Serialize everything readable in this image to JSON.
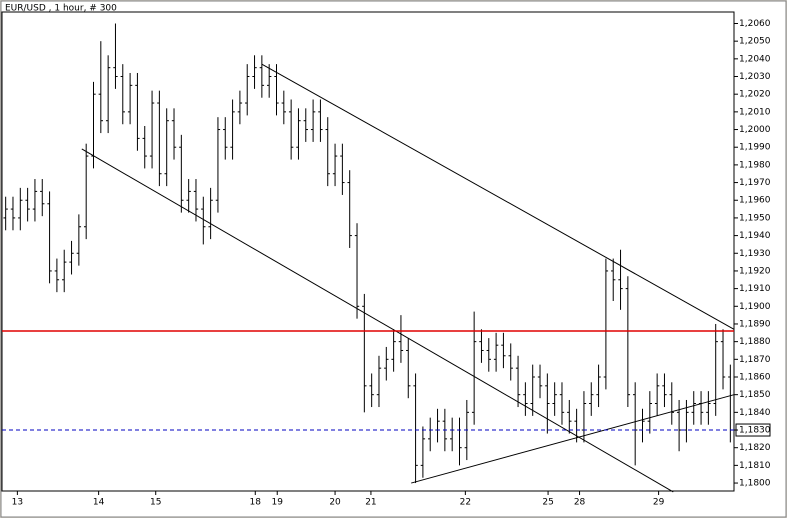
{
  "chart_data": {
    "type": "ohlc",
    "title": "EUR/USD , 1 hour, # 300",
    "xlim": [
      -0.5,
      99.5
    ],
    "ylim": [
      1.17955,
      1.20665
    ],
    "xticks": [
      {
        "value": 1.6,
        "label": "13"
      },
      {
        "value": 12.7,
        "label": "14"
      },
      {
        "value": 20.5,
        "label": "15"
      },
      {
        "value": 34.1,
        "label": "18"
      },
      {
        "value": 37.1,
        "label": "19"
      },
      {
        "value": 45,
        "label": "20"
      },
      {
        "value": 49.9,
        "label": "21"
      },
      {
        "value": 62.8,
        "label": "22"
      },
      {
        "value": 74.1,
        "label": "25"
      },
      {
        "value": 78.4,
        "label": "28"
      },
      {
        "value": 89.2,
        "label": "29"
      }
    ],
    "yticks": [
      {
        "value": 1.18,
        "label": "1,1800"
      },
      {
        "value": 1.181,
        "label": "1,1810"
      },
      {
        "value": 1.182,
        "label": "1,1820"
      },
      {
        "value": 1.183,
        "label": "1,1830"
      },
      {
        "value": 1.184,
        "label": "1,1840"
      },
      {
        "value": 1.185,
        "label": "1,1850"
      },
      {
        "value": 1.186,
        "label": "1,1860"
      },
      {
        "value": 1.187,
        "label": "1,1870"
      },
      {
        "value": 1.188,
        "label": "1,1880"
      },
      {
        "value": 1.189,
        "label": "1,1890"
      },
      {
        "value": 1.19,
        "label": "1,1900"
      },
      {
        "value": 1.191,
        "label": "1,1910"
      },
      {
        "value": 1.192,
        "label": "1,1920"
      },
      {
        "value": 1.193,
        "label": "1,1930"
      },
      {
        "value": 1.194,
        "label": "1,1940"
      },
      {
        "value": 1.195,
        "label": "1,1950"
      },
      {
        "value": 1.196,
        "label": "1,1960"
      },
      {
        "value": 1.197,
        "label": "1,1970"
      },
      {
        "value": 1.198,
        "label": "1,1980"
      },
      {
        "value": 1.199,
        "label": "1,1990"
      },
      {
        "value": 1.2,
        "label": "1,2000"
      },
      {
        "value": 1.201,
        "label": "1,2010"
      },
      {
        "value": 1.202,
        "label": "1,2020"
      },
      {
        "value": 1.203,
        "label": "1,2030"
      },
      {
        "value": 1.204,
        "label": "1,2040"
      },
      {
        "value": 1.205,
        "label": "1,2050"
      },
      {
        "value": 1.206,
        "label": "1,2060"
      }
    ],
    "color": "#000000",
    "open": [
      1.195,
      1.1955,
      1.195,
      1.196,
      1.1955,
      1.1965,
      1.1958,
      1.192,
      1.1915,
      1.1925,
      1.193,
      1.1945,
      1.1985,
      1.202,
      1.2005,
      1.2035,
      1.203,
      1.201,
      1.2025,
      1.1995,
      1.1985,
      1.2015,
      1.1975,
      1.2005,
      1.199,
      1.196,
      1.1965,
      1.1955,
      1.1945,
      1.196,
      1.2,
      1.199,
      1.201,
      1.2015,
      1.203,
      1.2035,
      1.2025,
      1.203,
      1.2015,
      1.201,
      1.199,
      1.2005,
      1.2,
      1.201,
      1.2,
      1.1975,
      1.1985,
      1.197,
      1.194,
      1.19,
      1.1855,
      1.185,
      1.1865,
      1.187,
      1.188,
      1.1875,
      1.1855,
      1.181,
      1.1825,
      1.183,
      1.1835,
      1.1825,
      1.183,
      1.182,
      1.184,
      1.188,
      1.1875,
      1.187,
      1.1878,
      1.1872,
      1.1865,
      1.185,
      1.1845,
      1.186,
      1.1855,
      1.1845,
      1.185,
      1.184,
      1.1835,
      1.183,
      1.1845,
      1.185,
      1.186,
      1.192,
      1.1915,
      1.191,
      1.185,
      1.183,
      1.1835,
      1.1845,
      1.1855,
      1.185,
      1.184,
      1.183,
      1.184,
      1.1845,
      1.184,
      1.1845,
      1.188,
      1.186
    ],
    "high": [
      1.1962,
      1.1962,
      1.1967,
      1.1967,
      1.1972,
      1.1972,
      1.1965,
      1.1927,
      1.1932,
      1.1937,
      1.1952,
      1.1992,
      1.2027,
      1.205,
      1.2042,
      1.206,
      1.2037,
      1.2032,
      1.2032,
      1.2002,
      1.2022,
      1.2022,
      1.2012,
      1.2012,
      1.1997,
      1.1972,
      1.1972,
      1.1962,
      1.1967,
      1.2007,
      1.2007,
      1.2017,
      1.2022,
      1.2037,
      1.2042,
      1.2042,
      1.2037,
      1.2037,
      1.2022,
      1.2017,
      1.2012,
      1.2012,
      1.2017,
      1.2017,
      1.2007,
      1.1992,
      1.1992,
      1.1977,
      1.1947,
      1.1907,
      1.1862,
      1.1872,
      1.1877,
      1.1887,
      1.1895,
      1.1882,
      1.1862,
      1.1832,
      1.1837,
      1.1842,
      1.1842,
      1.1837,
      1.1837,
      1.1847,
      1.1897,
      1.1887,
      1.1882,
      1.1885,
      1.1885,
      1.1879,
      1.1872,
      1.1857,
      1.1867,
      1.1867,
      1.1862,
      1.1857,
      1.1857,
      1.1847,
      1.1842,
      1.1852,
      1.1857,
      1.1867,
      1.1927,
      1.1927,
      1.1932,
      1.1917,
      1.1857,
      1.1842,
      1.1852,
      1.1862,
      1.1862,
      1.1857,
      1.1847,
      1.1847,
      1.1852,
      1.1852,
      1.1852,
      1.189,
      1.1887,
      1.1867
    ],
    "low": [
      1.1943,
      1.1943,
      1.1943,
      1.1948,
      1.1948,
      1.1951,
      1.1913,
      1.1908,
      1.1908,
      1.1918,
      1.1923,
      1.1938,
      1.1978,
      1.1998,
      1.1998,
      1.2023,
      1.2003,
      1.2003,
      1.1988,
      1.1978,
      1.1978,
      1.1968,
      1.1968,
      1.1983,
      1.1953,
      1.1953,
      1.1948,
      1.1935,
      1.1938,
      1.1953,
      1.1983,
      1.1983,
      1.2003,
      1.2008,
      1.2023,
      1.2018,
      1.2018,
      1.2008,
      1.2003,
      1.1983,
      1.1983,
      1.1993,
      1.1993,
      1.1993,
      1.1968,
      1.1968,
      1.1963,
      1.1933,
      1.1893,
      1.184,
      1.1843,
      1.1843,
      1.1858,
      1.1863,
      1.1868,
      1.1848,
      1.18,
      1.1803,
      1.1818,
      1.1823,
      1.1818,
      1.1818,
      1.181,
      1.1813,
      1.1833,
      1.1868,
      1.1863,
      1.1863,
      1.1865,
      1.1858,
      1.1843,
      1.1838,
      1.1838,
      1.1848,
      1.1828,
      1.1838,
      1.1833,
      1.1828,
      1.1823,
      1.1823,
      1.1838,
      1.1843,
      1.1853,
      1.1903,
      1.1898,
      1.1843,
      1.181,
      1.1823,
      1.1828,
      1.1838,
      1.1843,
      1.1833,
      1.1818,
      1.1823,
      1.1833,
      1.1833,
      1.1833,
      1.1838,
      1.1853,
      1.1823
    ],
    "close": [
      1.1955,
      1.195,
      1.196,
      1.1955,
      1.1965,
      1.1958,
      1.192,
      1.1915,
      1.1925,
      1.193,
      1.1945,
      1.1985,
      1.202,
      1.2005,
      1.2035,
      1.203,
      1.201,
      1.2025,
      1.1995,
      1.1985,
      1.2015,
      1.1975,
      1.2005,
      1.199,
      1.196,
      1.1965,
      1.1955,
      1.1945,
      1.196,
      1.2,
      1.199,
      1.201,
      1.2015,
      1.203,
      1.2035,
      1.2025,
      1.203,
      1.2015,
      1.201,
      1.199,
      1.2005,
      1.2,
      1.201,
      1.2,
      1.1975,
      1.1985,
      1.197,
      1.194,
      1.19,
      1.1855,
      1.185,
      1.1865,
      1.187,
      1.188,
      1.1875,
      1.1855,
      1.181,
      1.1825,
      1.183,
      1.1835,
      1.1825,
      1.183,
      1.182,
      1.184,
      1.188,
      1.1875,
      1.187,
      1.1878,
      1.1872,
      1.1865,
      1.185,
      1.1845,
      1.186,
      1.1855,
      1.1845,
      1.185,
      1.184,
      1.1835,
      1.183,
      1.1845,
      1.185,
      1.186,
      1.192,
      1.1915,
      1.191,
      1.185,
      1.183,
      1.1835,
      1.1845,
      1.1855,
      1.185,
      1.184,
      1.183,
      1.184,
      1.1845,
      1.184,
      1.1845,
      1.188,
      1.186,
      1.183
    ],
    "hlines": [
      {
        "value": 1.1886,
        "color": "#e00000"
      },
      {
        "value": 1.183,
        "color": "#0000c0",
        "dashed": true
      }
    ],
    "trendlines": [
      {
        "x": [
          35,
          99.5
        ],
        "y": [
          1.2037,
          1.1887
        ]
      },
      {
        "x": [
          10.4,
          91.2
        ],
        "y": [
          1.1989,
          1.1795
        ]
      },
      {
        "x": [
          55.4,
          99.5
        ],
        "y": [
          1.18,
          1.185
        ]
      }
    ]
  }
}
